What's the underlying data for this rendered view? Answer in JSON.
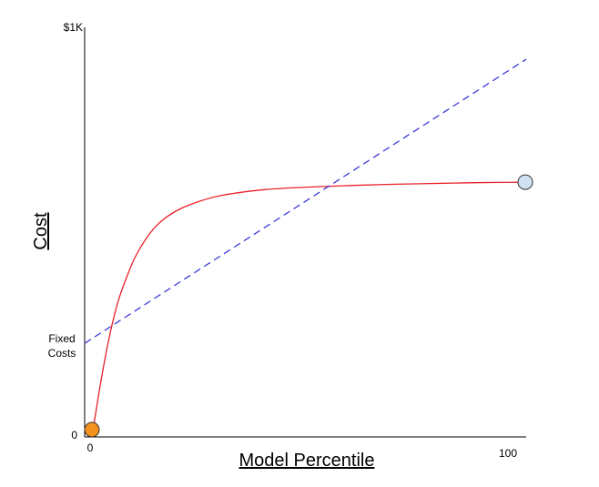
{
  "chart_data": {
    "type": "line",
    "title": "",
    "xlabel": "Model Percentile",
    "ylabel": "Cost",
    "x_ticks": [
      {
        "value": 0,
        "label": "0"
      },
      {
        "value": 100,
        "label": "100"
      }
    ],
    "y_ticks": [
      {
        "value": 0,
        "label": "0"
      },
      {
        "value": 1000,
        "label": "$1K"
      }
    ],
    "y_annotation": {
      "value": 240,
      "label_lines": [
        "Fixed",
        "Costs"
      ]
    },
    "xlim": [
      0,
      100
    ],
    "ylim": [
      0,
      1000
    ],
    "grid": false,
    "colors": {
      "curve": "#e8212a",
      "line": "#3b3bdc",
      "start_marker": "#f5921e",
      "end_marker": "#cfe2f3",
      "axis": "#000000"
    },
    "series": [
      {
        "style": "solid",
        "points": [
          [
            0,
            0
          ],
          [
            2,
            132
          ],
          [
            4,
            244
          ],
          [
            6,
            330
          ],
          [
            8,
            390
          ],
          [
            10,
            440
          ],
          [
            13,
            492
          ],
          [
            16,
            527
          ],
          [
            20,
            555
          ],
          [
            25,
            576
          ],
          [
            30,
            590
          ],
          [
            40,
            604
          ],
          [
            50,
            610
          ],
          [
            60,
            614
          ],
          [
            70,
            617
          ],
          [
            80,
            619
          ],
          [
            90,
            621
          ],
          [
            100,
            622
          ]
        ]
      },
      {
        "style": "dashed",
        "points": [
          [
            0,
            240
          ],
          [
            100,
            922
          ]
        ]
      }
    ],
    "markers": [
      {
        "x": 0,
        "y": 0,
        "color_key": "start_marker"
      },
      {
        "x": 100,
        "y": 622,
        "color_key": "end_marker"
      }
    ]
  }
}
